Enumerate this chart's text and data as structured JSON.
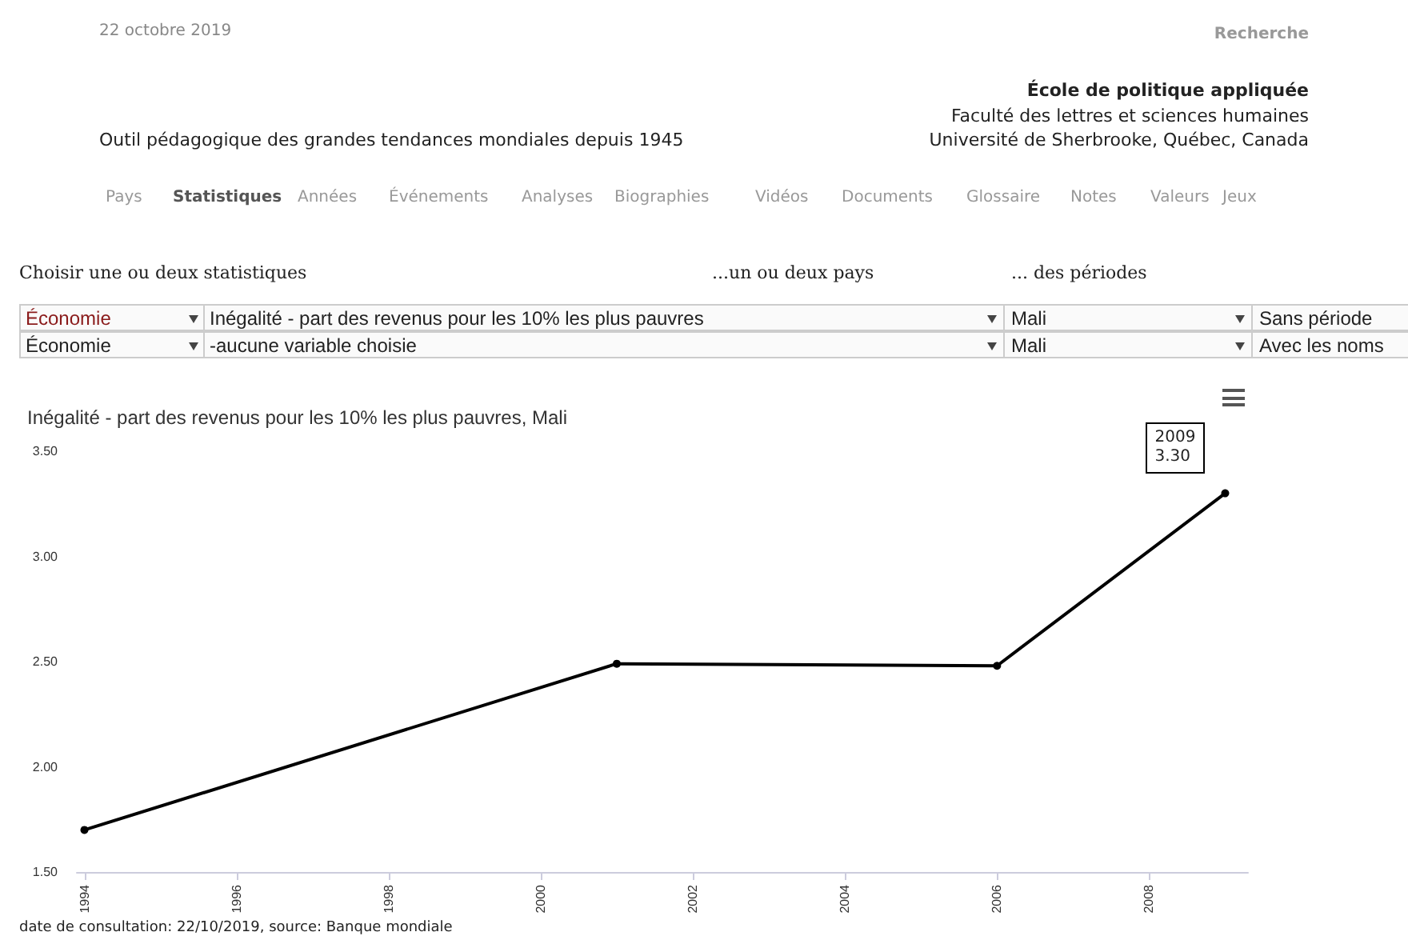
{
  "chart_data": {
    "type": "line",
    "title": "Inégalité - part des revenus pour les 10% les plus pauvres, Mali",
    "subtitle": "Outil pédagogique des grandes tendances mondiales depuis 1945",
    "annotations": [
      "22 octobre 2019",
      "Recherche",
      "École de politique appliquée",
      "Faculté des lettres et sciences humaines",
      "Université de Sherbrooke, Québec, Canada",
      "Pays",
      "Statistiques",
      "Années",
      "Événements",
      "Analyses",
      "Biographies",
      "Vidéos",
      "Documents",
      "Glossaire",
      "Notes",
      "Valeurs",
      "Jeux",
      "Choisir une ou deux statistiques",
      "...un ou deux pays",
      "... des périodes",
      "Économie",
      "Inégalité - part des revenus pour les 10% les plus pauvres",
      "Mali",
      "Sans période",
      "Économie",
      "-aucune variable choisie",
      "Mali",
      "Avec les noms",
      "date de consultation: 22/10/2019, source: Banque mondiale",
      {
        "text": "2009\n3.30",
        "x": 2009,
        "y": 3.3
      }
    ],
    "x": [
      1994,
      2001,
      2006,
      2009
    ],
    "series": [
      {
        "color": "#000000",
        "values": [
          1.7,
          2.49,
          2.48,
          3.3
        ]
      }
    ],
    "xlim": [
      1993.9,
      2009.3
    ],
    "xticks": [
      1994,
      1996,
      1998,
      2000,
      2002,
      2004,
      2006,
      2008
    ],
    "ylim": [
      1.5,
      3.5
    ],
    "yticks": [
      {
        "value": 1.5,
        "label": "1.50"
      },
      {
        "value": 2,
        "label": "2.00"
      },
      {
        "value": 2.5,
        "label": "2.50"
      },
      {
        "value": 3,
        "label": "3.00"
      },
      {
        "value": 3.5,
        "label": "3.50"
      }
    ],
    "grid": false,
    "marker": "circle",
    "line_style": "solid"
  }
}
